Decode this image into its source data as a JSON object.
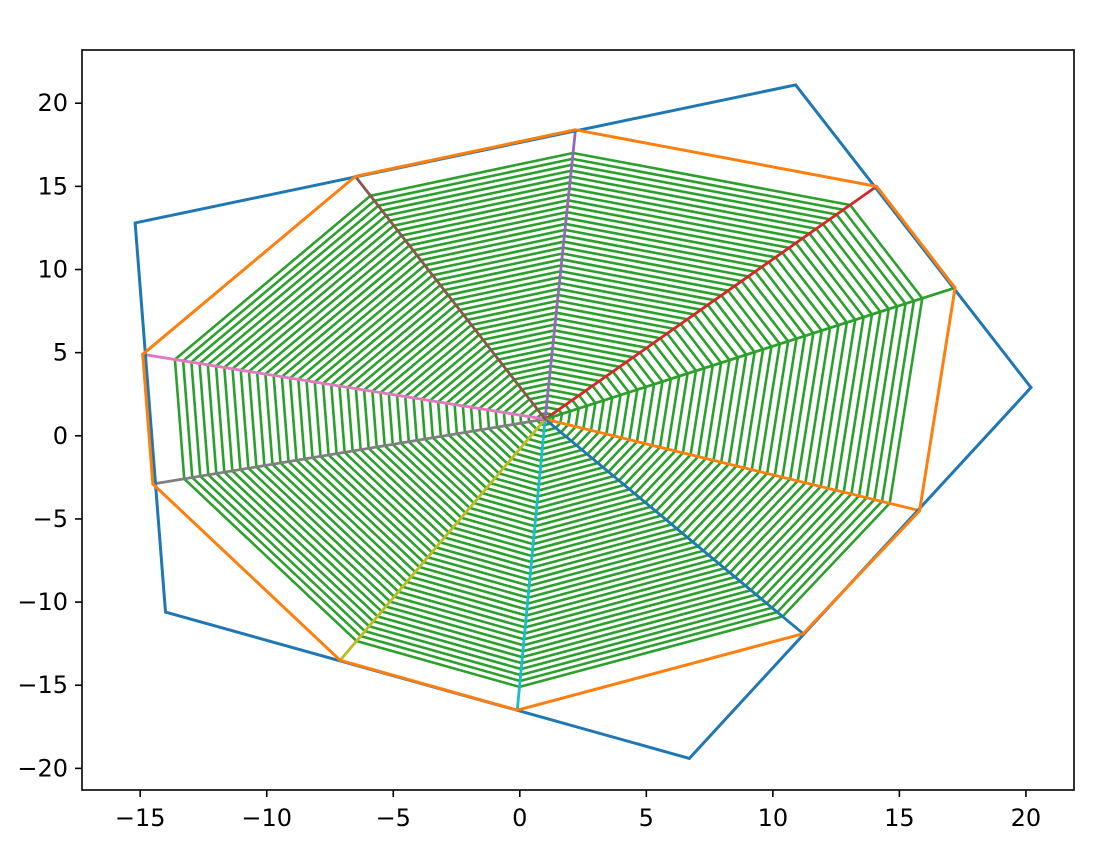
{
  "chart_data": {
    "type": "line",
    "title": "",
    "xlabel": "",
    "ylabel": "",
    "xlim": [
      -17.3,
      21.9
    ],
    "ylim": [
      -21.3,
      23.2
    ],
    "grid": false,
    "legend": "none",
    "x_ticks": [
      -15,
      -10,
      -5,
      0,
      5,
      10,
      15,
      20
    ],
    "y_ticks": [
      -20,
      -15,
      -10,
      -5,
      0,
      5,
      10,
      15,
      20
    ],
    "x_tick_labels": [
      "−15",
      "−10",
      "−5",
      "0",
      "5",
      "10",
      "15",
      "20"
    ],
    "y_tick_labels": [
      "−20",
      "−15",
      "−10",
      "−5",
      "0",
      "5",
      "10",
      "15",
      "20"
    ],
    "center": [
      1.0,
      1.0
    ],
    "outer_polygon": {
      "color": "#1f77b4",
      "points": [
        [
          10.9,
          21.1
        ],
        [
          20.2,
          2.9
        ],
        [
          6.7,
          -19.4
        ],
        [
          -14.0,
          -10.6
        ],
        [
          -15.2,
          12.8
        ]
      ]
    },
    "inner_polygon": {
      "color": "#ff7f0e",
      "points": [
        [
          2.2,
          18.4
        ],
        [
          14.1,
          15.0
        ],
        [
          17.2,
          8.9
        ],
        [
          15.8,
          -4.5
        ],
        [
          11.2,
          -11.9
        ],
        [
          -0.1,
          -16.5
        ],
        [
          -7.1,
          -13.5
        ],
        [
          -14.5,
          -2.9
        ],
        [
          -14.9,
          4.9
        ],
        [
          -6.5,
          15.6
        ]
      ]
    },
    "spokes": [
      {
        "color": "#9467bd",
        "point": [
          2.2,
          18.4
        ]
      },
      {
        "color": "#d62728",
        "point": [
          14.1,
          15.0
        ]
      },
      {
        "color": "#2ca02c",
        "point": [
          17.2,
          8.9
        ]
      },
      {
        "color": "#ff7f0e",
        "point": [
          15.8,
          -4.5
        ]
      },
      {
        "color": "#1f77b4",
        "point": [
          11.2,
          -11.9
        ]
      },
      {
        "color": "#17becf",
        "point": [
          -0.1,
          -16.5
        ]
      },
      {
        "color": "#bcbd22",
        "point": [
          -7.1,
          -13.5
        ]
      },
      {
        "color": "#7f7f7f",
        "point": [
          -14.5,
          -2.9
        ]
      },
      {
        "color": "#e377c2",
        "point": [
          -14.9,
          4.9
        ]
      },
      {
        "color": "#8c564b",
        "point": [
          -6.5,
          15.6
        ]
      }
    ],
    "web": {
      "color": "#2ca02c",
      "levels": 45,
      "max_fraction": 0.92
    }
  }
}
